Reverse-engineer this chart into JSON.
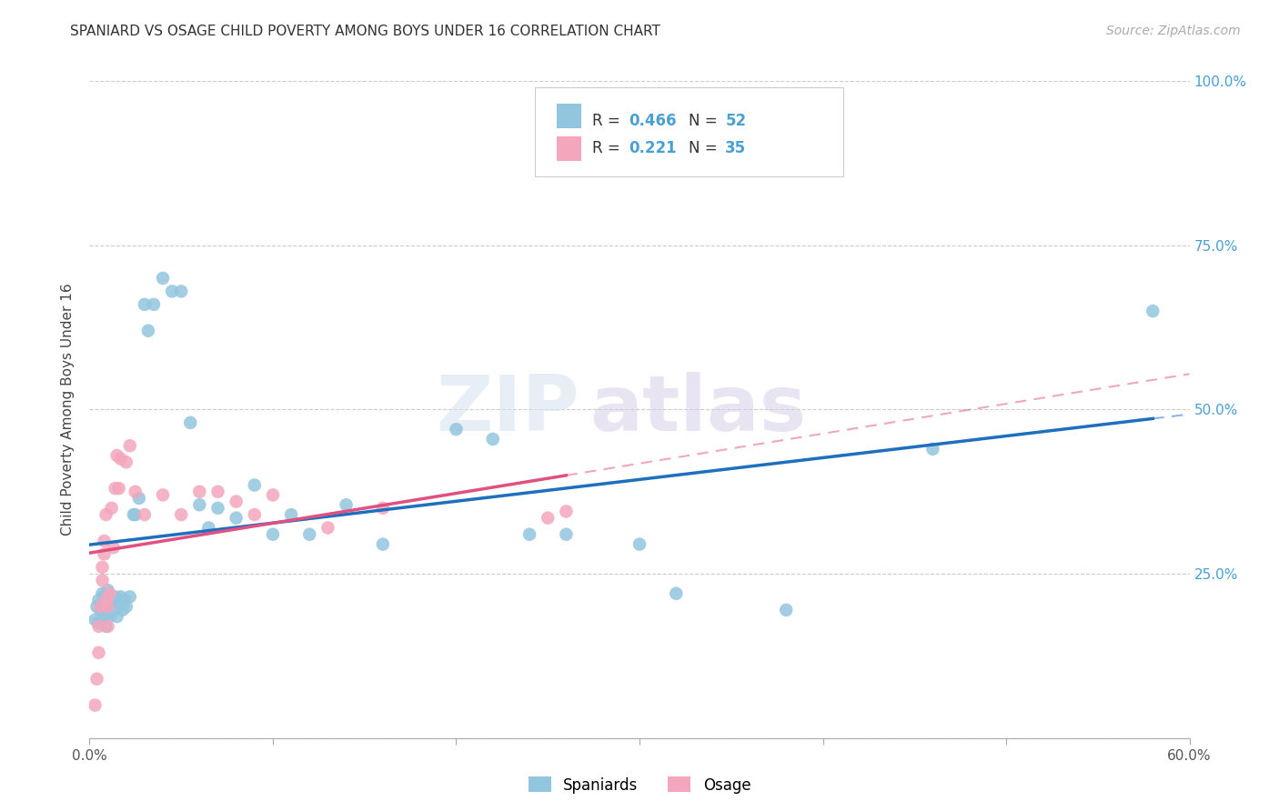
{
  "title": "SPANIARD VS OSAGE CHILD POVERTY AMONG BOYS UNDER 16 CORRELATION CHART",
  "source": "Source: ZipAtlas.com",
  "ylabel": "Child Poverty Among Boys Under 16",
  "xlim": [
    0.0,
    0.6
  ],
  "ylim": [
    0.0,
    1.0
  ],
  "blue_color": "#92c5de",
  "pink_color": "#f4a6bc",
  "blue_line_color": "#1f6fbf",
  "pink_line_color": "#e05080",
  "watermark_zip": "ZIP",
  "watermark_atlas": "atlas",
  "legend_r_blue": "0.466",
  "legend_n_blue": "52",
  "legend_r_pink": "0.221",
  "legend_n_pink": "35",
  "spaniards_x": [
    0.003,
    0.004,
    0.005,
    0.005,
    0.006,
    0.007,
    0.008,
    0.008,
    0.009,
    0.01,
    0.01,
    0.01,
    0.011,
    0.012,
    0.013,
    0.014,
    0.015,
    0.016,
    0.017,
    0.018,
    0.019,
    0.02,
    0.022,
    0.024,
    0.025,
    0.027,
    0.03,
    0.032,
    0.035,
    0.04,
    0.045,
    0.05,
    0.055,
    0.06,
    0.065,
    0.07,
    0.08,
    0.09,
    0.1,
    0.11,
    0.12,
    0.14,
    0.16,
    0.2,
    0.22,
    0.24,
    0.26,
    0.3,
    0.32,
    0.38,
    0.46,
    0.58
  ],
  "spaniards_y": [
    0.18,
    0.2,
    0.175,
    0.21,
    0.195,
    0.22,
    0.185,
    0.215,
    0.17,
    0.19,
    0.2,
    0.225,
    0.185,
    0.205,
    0.195,
    0.215,
    0.185,
    0.205,
    0.215,
    0.195,
    0.21,
    0.2,
    0.215,
    0.34,
    0.34,
    0.365,
    0.66,
    0.62,
    0.66,
    0.7,
    0.68,
    0.68,
    0.48,
    0.355,
    0.32,
    0.35,
    0.335,
    0.385,
    0.31,
    0.34,
    0.31,
    0.355,
    0.295,
    0.47,
    0.455,
    0.31,
    0.31,
    0.295,
    0.22,
    0.195,
    0.44,
    0.65
  ],
  "osage_x": [
    0.003,
    0.004,
    0.005,
    0.005,
    0.006,
    0.007,
    0.007,
    0.008,
    0.008,
    0.009,
    0.009,
    0.01,
    0.01,
    0.011,
    0.012,
    0.013,
    0.014,
    0.015,
    0.016,
    0.017,
    0.02,
    0.022,
    0.025,
    0.03,
    0.04,
    0.05,
    0.06,
    0.07,
    0.08,
    0.09,
    0.1,
    0.13,
    0.16,
    0.25,
    0.26
  ],
  "osage_y": [
    0.05,
    0.09,
    0.13,
    0.17,
    0.2,
    0.24,
    0.26,
    0.28,
    0.3,
    0.34,
    0.21,
    0.17,
    0.2,
    0.22,
    0.35,
    0.29,
    0.38,
    0.43,
    0.38,
    0.425,
    0.42,
    0.445,
    0.375,
    0.34,
    0.37,
    0.34,
    0.375,
    0.375,
    0.36,
    0.34,
    0.37,
    0.32,
    0.35,
    0.335,
    0.345
  ]
}
